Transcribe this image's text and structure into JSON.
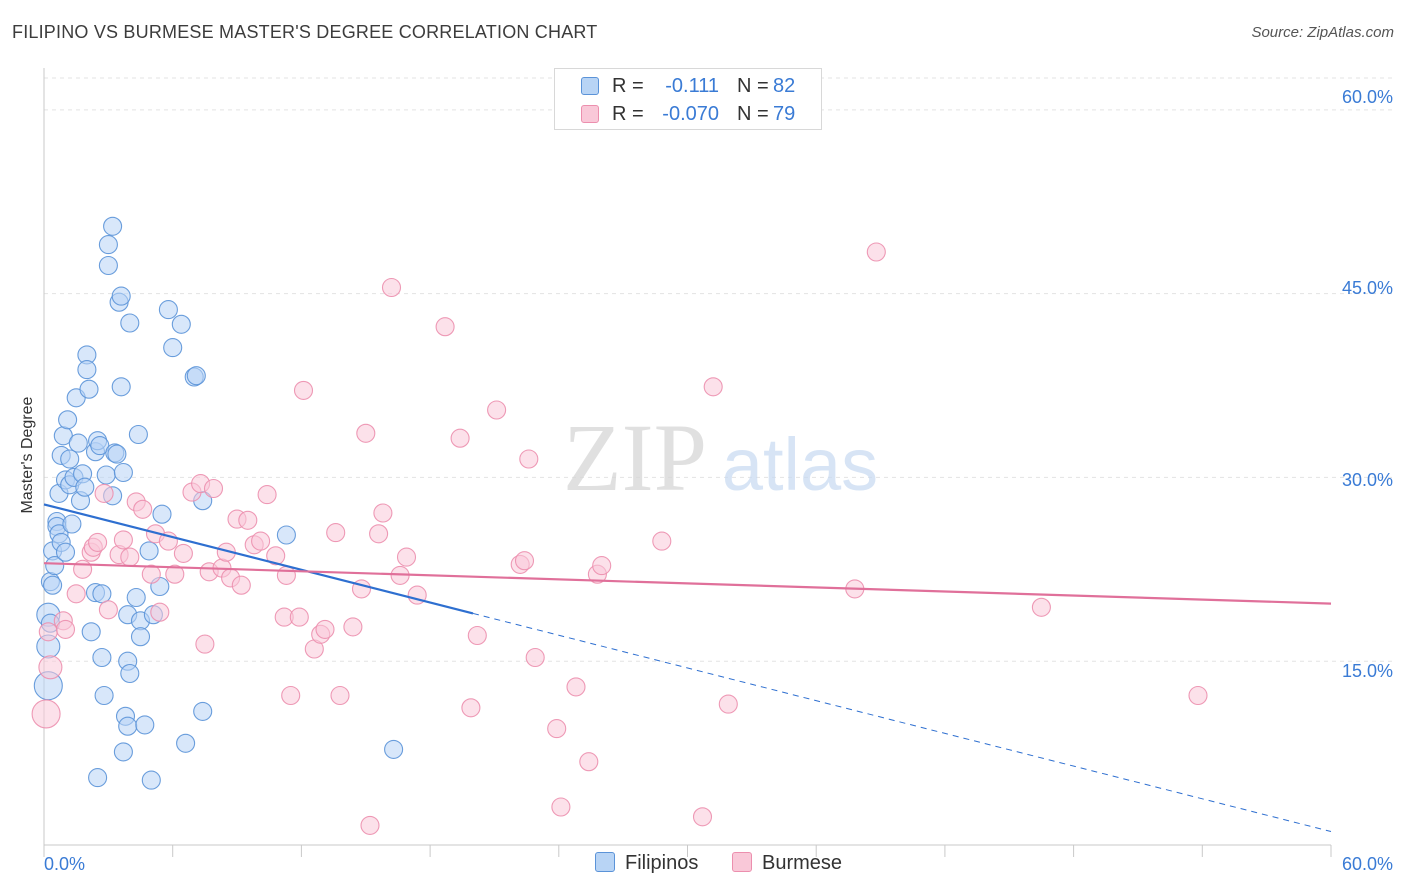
{
  "header": {
    "title": "FILIPINO VS BURMESE MASTER'S DEGREE CORRELATION CHART",
    "source": "Source: ZipAtlas.com"
  },
  "stats": {
    "r_label": "R =",
    "n_label": "N =",
    "filipinos": {
      "r": "-0.111",
      "n": "82"
    },
    "burmese": {
      "r": "-0.070",
      "n": "79"
    }
  },
  "legend": {
    "filipinos": "Filipinos",
    "burmese": "Burmese"
  },
  "watermark": {
    "zip": "ZIP",
    "atlas": "atlas"
  },
  "colors": {
    "filipinos_fill": "#b8d4f5",
    "filipinos_stroke": "#5b93d8",
    "filipinos_line": "#2e6fd0",
    "burmese_fill": "#f9c8d8",
    "burmese_stroke": "#ec8fae",
    "burmese_line": "#e0709a",
    "axis_text": "#3a7bd5"
  },
  "chart_data": {
    "type": "scatter",
    "title": "FILIPINO VS BURMESE MASTER'S DEGREE CORRELATION CHART",
    "xlabel": "",
    "ylabel": "Master's Degree",
    "xlim": [
      0,
      60
    ],
    "ylim": [
      0,
      62.6
    ],
    "x_tick_labels": {
      "min": "0.0%",
      "max": "60.0%"
    },
    "y_ticks": [
      15,
      30,
      45,
      60
    ],
    "y_tick_labels": [
      "15.0%",
      "30.0%",
      "45.0%",
      "60.0%"
    ],
    "grid": true,
    "legend_position": "bottom-center",
    "series": [
      {
        "name": "Filipinos",
        "trend": {
          "x": [
            0,
            20,
            60
          ],
          "y": [
            27.8,
            18.9,
            1.1
          ]
        },
        "points": [
          [
            0.2,
            13.0,
            3
          ],
          [
            0.2,
            16.2,
            2
          ],
          [
            0.2,
            18.8,
            2
          ],
          [
            0.3,
            18.1,
            1
          ],
          [
            0.3,
            21.5,
            1
          ],
          [
            0.4,
            21.2,
            1
          ],
          [
            0.4,
            24.0,
            1
          ],
          [
            0.5,
            22.8,
            1
          ],
          [
            0.6,
            26.4,
            1
          ],
          [
            0.6,
            26.0,
            1
          ],
          [
            0.7,
            25.4,
            1
          ],
          [
            0.7,
            28.7,
            1
          ],
          [
            0.8,
            24.7,
            1
          ],
          [
            0.8,
            31.8,
            1
          ],
          [
            0.9,
            33.4,
            1
          ],
          [
            1.0,
            23.9,
            1
          ],
          [
            1.0,
            29.8,
            1
          ],
          [
            1.1,
            34.7,
            1
          ],
          [
            1.2,
            29.4,
            1
          ],
          [
            1.2,
            31.5,
            1
          ],
          [
            1.3,
            26.2,
            1
          ],
          [
            1.4,
            30.0,
            1
          ],
          [
            1.5,
            36.5,
            1
          ],
          [
            1.6,
            32.8,
            1
          ],
          [
            1.7,
            28.1,
            1
          ],
          [
            1.8,
            30.3,
            1
          ],
          [
            1.9,
            29.2,
            1
          ],
          [
            2.0,
            40.0,
            1
          ],
          [
            2.0,
            38.8,
            1
          ],
          [
            2.1,
            37.2,
            1
          ],
          [
            2.2,
            17.4,
            1
          ],
          [
            2.4,
            32.1,
            1
          ],
          [
            2.4,
            20.6,
            1
          ],
          [
            2.5,
            33.0,
            1
          ],
          [
            2.5,
            5.5,
            1
          ],
          [
            2.6,
            32.6,
            1
          ],
          [
            2.7,
            20.5,
            1
          ],
          [
            2.7,
            15.3,
            1
          ],
          [
            2.8,
            12.2,
            1
          ],
          [
            2.9,
            30.2,
            1
          ],
          [
            3.0,
            47.3,
            1
          ],
          [
            3.0,
            49.0,
            1
          ],
          [
            3.2,
            50.5,
            1
          ],
          [
            3.2,
            28.5,
            1
          ],
          [
            3.3,
            32.0,
            1
          ],
          [
            3.4,
            31.9,
            1
          ],
          [
            3.5,
            44.3,
            1
          ],
          [
            3.6,
            37.4,
            1
          ],
          [
            3.6,
            44.8,
            1
          ],
          [
            3.7,
            30.4,
            1
          ],
          [
            3.7,
            7.6,
            1
          ],
          [
            3.8,
            10.5,
            1
          ],
          [
            3.9,
            18.8,
            1
          ],
          [
            3.9,
            15.0,
            1
          ],
          [
            3.9,
            9.7,
            1
          ],
          [
            4.0,
            14.0,
            1
          ],
          [
            4.0,
            42.6,
            1
          ],
          [
            4.3,
            20.2,
            1
          ],
          [
            4.4,
            33.5,
            1
          ],
          [
            4.5,
            18.3,
            1
          ],
          [
            4.5,
            17.0,
            1
          ],
          [
            4.7,
            9.8,
            1
          ],
          [
            4.9,
            24.0,
            1
          ],
          [
            5.0,
            5.3,
            1
          ],
          [
            5.1,
            18.8,
            1
          ],
          [
            5.4,
            21.1,
            1
          ],
          [
            5.5,
            27.0,
            1
          ],
          [
            5.8,
            43.7,
            1
          ],
          [
            6.0,
            40.6,
            1
          ],
          [
            6.4,
            42.5,
            1
          ],
          [
            6.6,
            8.3,
            1
          ],
          [
            7.0,
            38.2,
            1
          ],
          [
            7.1,
            38.3,
            1
          ],
          [
            7.4,
            10.9,
            1
          ],
          [
            7.4,
            28.1,
            1
          ],
          [
            11.3,
            25.3,
            1
          ],
          [
            16.3,
            7.8,
            1
          ]
        ]
      },
      {
        "name": "Burmese",
        "trend": {
          "x": [
            0,
            60
          ],
          "y": [
            23.0,
            19.7
          ]
        },
        "points": [
          [
            0.1,
            10.7,
            3
          ],
          [
            0.2,
            17.4,
            1
          ],
          [
            0.3,
            14.5,
            2
          ],
          [
            0.9,
            18.3,
            1
          ],
          [
            1.0,
            17.6,
            1
          ],
          [
            1.5,
            20.5,
            1
          ],
          [
            1.8,
            22.5,
            1
          ],
          [
            2.2,
            23.9,
            1
          ],
          [
            2.3,
            24.3,
            1
          ],
          [
            2.5,
            24.7,
            1
          ],
          [
            2.8,
            28.7,
            1
          ],
          [
            3.0,
            19.2,
            1
          ],
          [
            3.5,
            23.7,
            1
          ],
          [
            3.7,
            24.9,
            1
          ],
          [
            4.0,
            23.5,
            1
          ],
          [
            4.3,
            28.0,
            1
          ],
          [
            4.6,
            27.4,
            1
          ],
          [
            5.0,
            22.1,
            1
          ],
          [
            5.2,
            25.4,
            1
          ],
          [
            5.4,
            19.0,
            1
          ],
          [
            5.8,
            24.8,
            1
          ],
          [
            6.1,
            22.1,
            1
          ],
          [
            6.5,
            23.8,
            1
          ],
          [
            6.9,
            28.8,
            1
          ],
          [
            7.3,
            29.5,
            1
          ],
          [
            7.5,
            16.4,
            1
          ],
          [
            7.7,
            22.3,
            1
          ],
          [
            7.9,
            29.1,
            1
          ],
          [
            8.3,
            22.6,
            1
          ],
          [
            8.5,
            23.9,
            1
          ],
          [
            8.7,
            21.8,
            1
          ],
          [
            9.0,
            26.6,
            1
          ],
          [
            9.2,
            21.2,
            1
          ],
          [
            9.5,
            26.5,
            1
          ],
          [
            9.8,
            24.5,
            1
          ],
          [
            10.1,
            24.8,
            1
          ],
          [
            10.4,
            28.6,
            1
          ],
          [
            10.8,
            23.6,
            1
          ],
          [
            11.2,
            18.6,
            1
          ],
          [
            11.3,
            22.0,
            1
          ],
          [
            11.5,
            12.2,
            1
          ],
          [
            11.9,
            18.6,
            1
          ],
          [
            12.1,
            37.1,
            1
          ],
          [
            12.6,
            16.0,
            1
          ],
          [
            12.9,
            17.2,
            1
          ],
          [
            13.1,
            17.6,
            1
          ],
          [
            13.6,
            25.5,
            1
          ],
          [
            13.8,
            12.2,
            1
          ],
          [
            14.4,
            17.8,
            1
          ],
          [
            14.8,
            20.9,
            1
          ],
          [
            15.0,
            33.6,
            1
          ],
          [
            15.2,
            1.6,
            1
          ],
          [
            15.6,
            25.4,
            1
          ],
          [
            15.8,
            27.1,
            1
          ],
          [
            16.2,
            45.5,
            1
          ],
          [
            16.6,
            22.0,
            1
          ],
          [
            16.9,
            23.5,
            1
          ],
          [
            17.4,
            20.4,
            1
          ],
          [
            18.7,
            42.3,
            1
          ],
          [
            19.4,
            33.2,
            1
          ],
          [
            19.9,
            11.2,
            1
          ],
          [
            20.2,
            17.1,
            1
          ],
          [
            21.1,
            35.5,
            1
          ],
          [
            22.2,
            22.9,
            1
          ],
          [
            22.4,
            23.2,
            1
          ],
          [
            22.6,
            31.5,
            1
          ],
          [
            22.9,
            15.3,
            1
          ],
          [
            23.9,
            9.5,
            1
          ],
          [
            24.1,
            3.1,
            1
          ],
          [
            24.8,
            12.9,
            1
          ],
          [
            25.4,
            6.8,
            1
          ],
          [
            25.8,
            22.1,
            1
          ],
          [
            26.0,
            22.8,
            1
          ],
          [
            28.8,
            24.8,
            1
          ],
          [
            30.7,
            2.3,
            1
          ],
          [
            31.2,
            37.4,
            1
          ],
          [
            31.9,
            11.5,
            1
          ],
          [
            37.8,
            20.9,
            1
          ],
          [
            38.8,
            48.4,
            1
          ],
          [
            46.5,
            19.4,
            1
          ],
          [
            53.8,
            12.2,
            1
          ]
        ]
      }
    ]
  }
}
